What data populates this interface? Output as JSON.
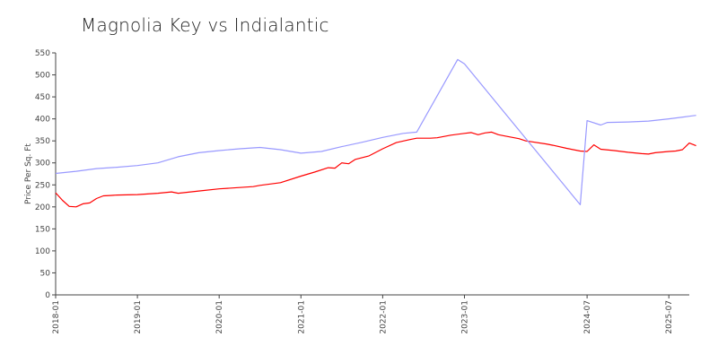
{
  "chart_data": {
    "type": "line",
    "title": "Magnolia Key vs Indialantic",
    "xlabel": "",
    "ylabel": "Price Per Sq. Ft",
    "ylim": [
      0,
      550
    ],
    "yticks": [
      0,
      50,
      100,
      150,
      200,
      250,
      300,
      350,
      400,
      450,
      500,
      550
    ],
    "xlim": [
      "2018-01",
      "2025-10"
    ],
    "xticks": [
      "2018-01",
      "2019-01",
      "2020-01",
      "2021-01",
      "2022-01",
      "2023-01",
      "2024-07",
      "2025-07"
    ],
    "grid": false,
    "legend": "none",
    "series": [
      {
        "color": "#ff0000",
        "points": [
          [
            "2018-01",
            232
          ],
          [
            "2018-02",
            215
          ],
          [
            "2018-03",
            201
          ],
          [
            "2018-04",
            200
          ],
          [
            "2018-05",
            207
          ],
          [
            "2018-06",
            209
          ],
          [
            "2018-07",
            219
          ],
          [
            "2018-08",
            225
          ],
          [
            "2018-09",
            226
          ],
          [
            "2018-10",
            227
          ],
          [
            "2019-01",
            228
          ],
          [
            "2019-04",
            231
          ],
          [
            "2019-06",
            234
          ],
          [
            "2019-07",
            231
          ],
          [
            "2019-10",
            236
          ],
          [
            "2020-01",
            241
          ],
          [
            "2020-04",
            244
          ],
          [
            "2020-06",
            246
          ],
          [
            "2020-07",
            249
          ],
          [
            "2020-10",
            255
          ],
          [
            "2021-01",
            270
          ],
          [
            "2021-03",
            279
          ],
          [
            "2021-05",
            289
          ],
          [
            "2021-06",
            288
          ],
          [
            "2021-07",
            300
          ],
          [
            "2021-08",
            298
          ],
          [
            "2021-09",
            308
          ],
          [
            "2021-11",
            316
          ],
          [
            "2022-01",
            332
          ],
          [
            "2022-03",
            346
          ],
          [
            "2022-05",
            353
          ],
          [
            "2022-06",
            356
          ],
          [
            "2022-08",
            356
          ],
          [
            "2022-09",
            357
          ],
          [
            "2022-11",
            363
          ],
          [
            "2023-01",
            367
          ],
          [
            "2023-02",
            369
          ],
          [
            "2023-03",
            364
          ],
          [
            "2023-04",
            368
          ],
          [
            "2023-05",
            370
          ],
          [
            "2023-06",
            364
          ],
          [
            "2023-07",
            361
          ],
          [
            "2023-09",
            355
          ],
          [
            "2023-10",
            350
          ],
          [
            "2024-01",
            343
          ],
          [
            "2024-02",
            340
          ],
          [
            "2024-04",
            333
          ],
          [
            "2024-06",
            327
          ],
          [
            "2024-07",
            326
          ],
          [
            "2024-08",
            341
          ],
          [
            "2024-09",
            331
          ],
          [
            "2024-11",
            328
          ],
          [
            "2025-01",
            324
          ],
          [
            "2025-03",
            321
          ],
          [
            "2025-04",
            320
          ],
          [
            "2025-05",
            323
          ],
          [
            "2025-07",
            326
          ],
          [
            "2025-08",
            327
          ],
          [
            "2025-09",
            330
          ],
          [
            "2025-10",
            345
          ],
          [
            "2025-11",
            339
          ]
        ]
      },
      {
        "color": "#9999ff",
        "points": [
          [
            "2018-01",
            276
          ],
          [
            "2018-04",
            281
          ],
          [
            "2018-07",
            287
          ],
          [
            "2018-10",
            290
          ],
          [
            "2019-01",
            294
          ],
          [
            "2019-04",
            300
          ],
          [
            "2019-07",
            314
          ],
          [
            "2019-10",
            323
          ],
          [
            "2020-01",
            328
          ],
          [
            "2020-04",
            332
          ],
          [
            "2020-07",
            335
          ],
          [
            "2020-10",
            330
          ],
          [
            "2021-01",
            322
          ],
          [
            "2021-04",
            326
          ],
          [
            "2021-07",
            337
          ],
          [
            "2021-10",
            347
          ],
          [
            "2022-01",
            358
          ],
          [
            "2022-04",
            367
          ],
          [
            "2022-06",
            370
          ],
          [
            "2022-12",
            535
          ],
          [
            "2023-01",
            525
          ],
          [
            "2024-06",
            205
          ],
          [
            "2024-07",
            396
          ],
          [
            "2024-09",
            386
          ],
          [
            "2024-10",
            392
          ],
          [
            "2025-01",
            393
          ],
          [
            "2025-04",
            395
          ],
          [
            "2025-07",
            400
          ],
          [
            "2025-10",
            406
          ],
          [
            "2025-11",
            408
          ]
        ]
      }
    ]
  }
}
